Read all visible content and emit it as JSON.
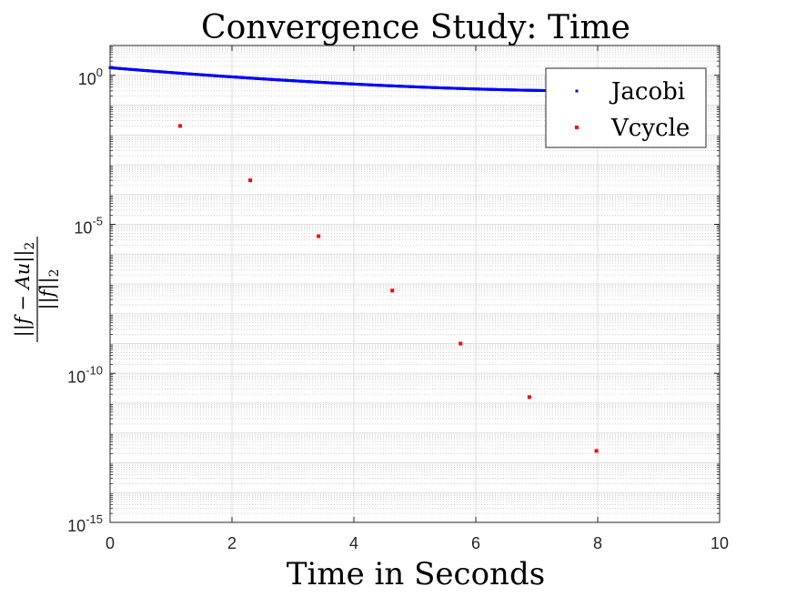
{
  "chart_data": {
    "type": "scatter",
    "title": "Convergence Study: Time",
    "xlabel": "Time in Seconds",
    "ylabel_numerator": "||f − Au||",
    "ylabel_numerator_sub": "2",
    "ylabel_denominator": "||f||",
    "ylabel_denominator_sub": "2",
    "xlim": [
      0,
      10
    ],
    "ylim_exponents": [
      -15,
      1
    ],
    "y_scale": "log",
    "grid": true,
    "legend_position": "top-right",
    "x_ticks": [
      "0",
      "2",
      "4",
      "6",
      "8",
      "10"
    ],
    "y_ticks": [
      {
        "base": "10",
        "exp": "0",
        "value_exp": 0
      },
      {
        "base": "10",
        "exp": "-5",
        "value_exp": -5
      },
      {
        "base": "10",
        "exp": "-10",
        "value_exp": -10
      },
      {
        "base": "10",
        "exp": "-15",
        "value_exp": -15
      }
    ],
    "series": [
      {
        "name": "Jacobi",
        "color": "#0000ff",
        "curve": {
          "x_start": 0.0,
          "x_end": 7.8,
          "y_start": 1.8,
          "y_end": 0.3
        }
      },
      {
        "name": "Vcycle",
        "color": "#ff0000",
        "points": [
          {
            "x": 1.15,
            "y": 0.02
          },
          {
            "x": 2.3,
            "y": 0.0003
          },
          {
            "x": 3.42,
            "y": 4e-06
          },
          {
            "x": 4.63,
            "y": 6e-08
          },
          {
            "x": 5.75,
            "y": 1e-09
          },
          {
            "x": 6.88,
            "y": 1.6e-11
          },
          {
            "x": 7.98,
            "y": 2.5e-13
          }
        ]
      }
    ]
  }
}
